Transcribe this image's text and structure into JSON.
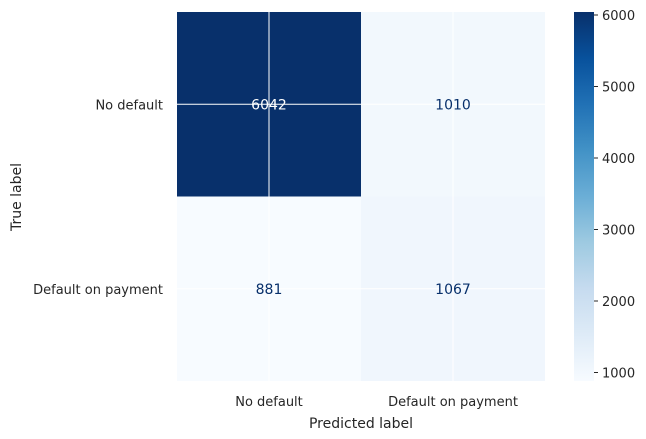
{
  "chart_data": {
    "type": "heatmap",
    "title": "",
    "xlabel": "Predicted label",
    "ylabel": "True label",
    "x_categories": [
      "No default",
      "Default on payment"
    ],
    "y_categories": [
      "No default",
      "Default on payment"
    ],
    "values": [
      [
        6042,
        1010
      ],
      [
        881,
        1067
      ]
    ],
    "value_labels": [
      [
        "6042",
        "1010"
      ],
      [
        "881",
        "1067"
      ]
    ],
    "colormap": "Blues",
    "colorbar": {
      "range": [
        881,
        6042
      ],
      "ticks": [
        1000,
        2000,
        3000,
        4000,
        5000,
        6000
      ],
      "tick_labels": [
        "1000",
        "2000",
        "3000",
        "4000",
        "5000",
        "6000"
      ]
    },
    "grid": true
  }
}
